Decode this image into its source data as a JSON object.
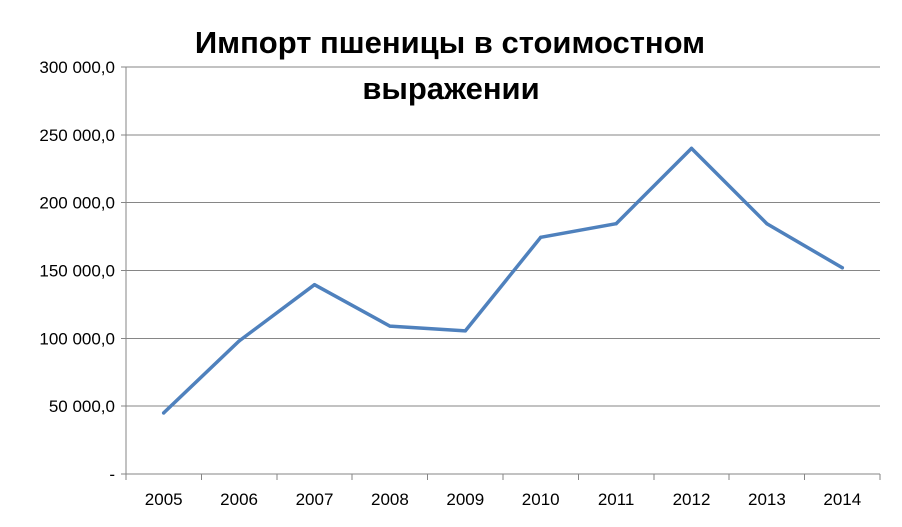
{
  "chart_data": {
    "type": "line",
    "title_lines": [
      "Импорт пшеницы в стоимостном",
      "выражении"
    ],
    "xlabel": "",
    "ylabel": "",
    "categories": [
      "2005",
      "2006",
      "2007",
      "2008",
      "2009",
      "2010",
      "2011",
      "2012",
      "2013",
      "2014"
    ],
    "series": [
      {
        "values": [
          45000,
          98000,
          139500,
          109000,
          105500,
          174500,
          184500,
          240000,
          184500,
          152000
        ]
      }
    ],
    "ylim": [
      0,
      300000
    ],
    "y_ticks": [
      0,
      50000,
      100000,
      150000,
      200000,
      250000,
      300000
    ],
    "y_tick_labels": [
      "-",
      "50 000,0",
      "100 000,0",
      "150 000,0",
      "200 000,0",
      "250 000,0",
      "300 000,0"
    ],
    "grid": true,
    "legend": "none",
    "line_color": "#4f81bd",
    "grid_color": "#868686",
    "axis_color": "#868686"
  }
}
